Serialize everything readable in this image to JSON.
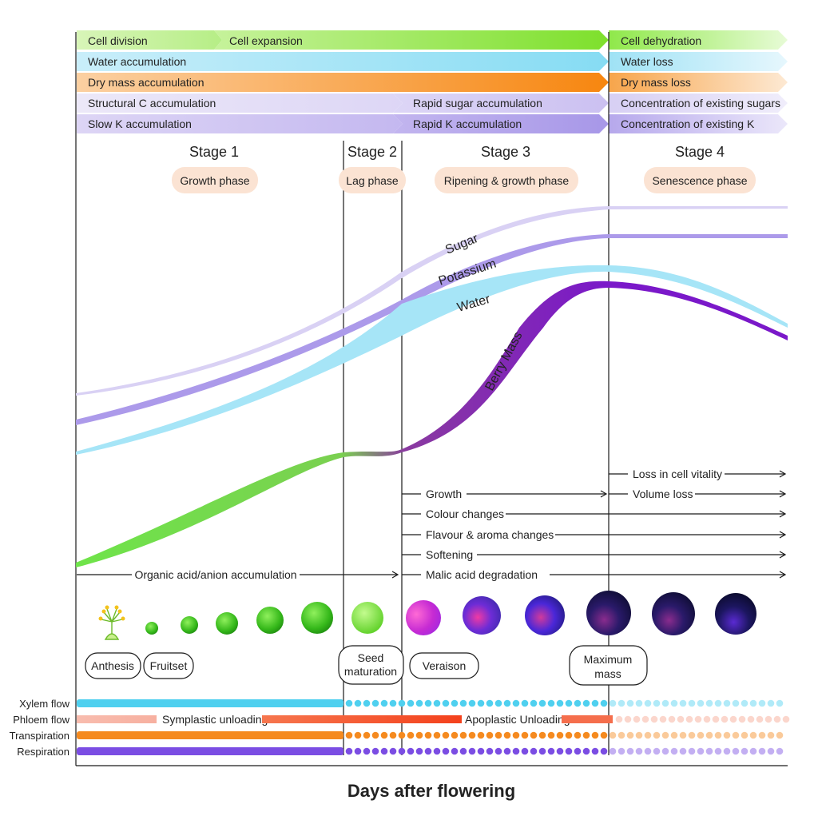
{
  "process_bars": {
    "growth": [
      {
        "label": "Cell division",
        "color_from": "#d8f5b8",
        "color_to": "#b6ee86"
      },
      {
        "label": "Cell expansion",
        "color_from": "#c6f29b",
        "color_to": "#7ee02c"
      },
      {
        "label": "Cell dehydration",
        "color_from": "#8fe84a",
        "color_to": "#e7fbd6"
      }
    ],
    "water": [
      {
        "label": "Water accumulation",
        "color_from": "#c9eefa",
        "color_to": "#86dcf3"
      },
      {
        "label": "Water loss",
        "color_from": "#9fe2f5",
        "color_to": "#e6f7fd"
      }
    ],
    "dry_mass": [
      {
        "label": "Dry mass accumulation",
        "color_from": "#fbd0a2",
        "color_to": "#f7860f"
      },
      {
        "label": "Dry mass loss",
        "color_from": "#f7a54b",
        "color_to": "#fde9d3"
      }
    ],
    "sugar": [
      {
        "label": "Structural C accumulation",
        "color_from": "#ece8f8",
        "color_to": "#ddd6f6"
      },
      {
        "label": "Rapid sugar accumulation",
        "color_from": "#ddd6f6",
        "color_to": "#cbc0f1"
      },
      {
        "label": "Concentration of existing sugars",
        "color_from": "#d7cff4",
        "color_to": "#f0edfb"
      }
    ],
    "potassium": [
      {
        "label": "Slow K accumulation",
        "color_from": "#ddd5f5",
        "color_to": "#c4b8f0"
      },
      {
        "label": "Rapid K accumulation",
        "color_from": "#c2b5ef",
        "color_to": "#a797e8"
      },
      {
        "label": "Concentration of existing K",
        "color_from": "#b6a8ec",
        "color_to": "#ebe7fa"
      }
    ]
  },
  "stages": [
    {
      "title": "Stage 1",
      "phase": "Growth phase"
    },
    {
      "title": "Stage 2",
      "phase": "Lag phase"
    },
    {
      "title": "Stage 3",
      "phase": "Ripening & growth phase"
    },
    {
      "title": "Stage 4",
      "phase": "Senescence phase"
    }
  ],
  "curves": {
    "sugar": {
      "label": "Sugar",
      "color": "#d9d1f4"
    },
    "potassium": {
      "label": "Potassium",
      "color": "#ac9aea"
    },
    "water": {
      "label": "Water",
      "color": "#9fe3f6"
    },
    "berry_mass": {
      "label": "Berry Mass",
      "color_start": "#6fe44a",
      "color_end": "#7a18c9"
    }
  },
  "processes": {
    "organic_acid": "Organic acid/anion accumulation",
    "malic": "Malic acid degradation",
    "growth": "Growth",
    "colour": "Colour changes",
    "flavour": "Flavour & aroma changes",
    "softening": "Softening",
    "loss_vitality": "Loss in cell vitality",
    "volume_loss": "Volume loss"
  },
  "milestones": {
    "anthesis": "Anthesis",
    "fruitset": "Fruitset",
    "seed_line1": "Seed",
    "seed_line2": "maturation",
    "veraison": "Veraison",
    "maxmass_line1": "Maximum",
    "maxmass_line2": "mass"
  },
  "flows": {
    "xylem": {
      "label": "Xylem flow",
      "color": "#4fd0ef"
    },
    "phloem": {
      "label": "Phloem flow",
      "color": "#f4502a"
    },
    "transpiration": {
      "label": "Transpiration",
      "color": "#f58a1f"
    },
    "respiration": {
      "label": "Respiration",
      "color": "#7b4de3"
    },
    "symplastic": "Symplastic unloading",
    "apoplastic": "Apoplastic Unloading"
  },
  "xaxis_label": "Days after flowering"
}
